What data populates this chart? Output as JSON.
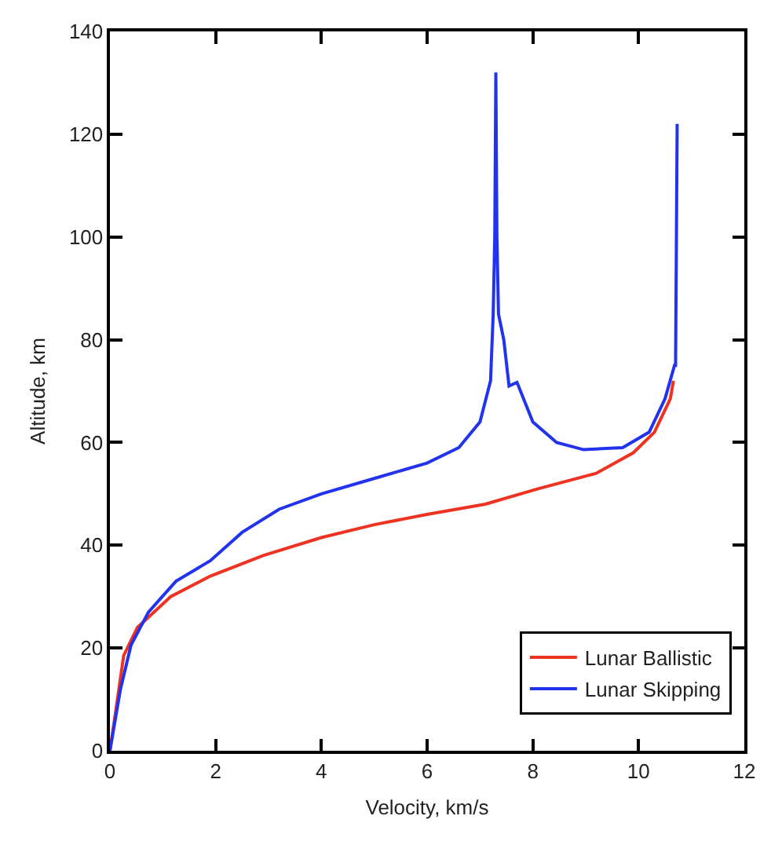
{
  "chart_data": {
    "type": "line",
    "xlabel": "Velocity, km/s",
    "ylabel": "Altitude, km",
    "xlim": [
      0,
      12
    ],
    "xticks": [
      0,
      2,
      4,
      6,
      8,
      10,
      12
    ],
    "ylim": [
      0,
      140
    ],
    "yticks": [
      0,
      20,
      40,
      60,
      80,
      100,
      120,
      140
    ],
    "grid": false,
    "legend": "bottom right",
    "marker": "none",
    "line_style": "solid",
    "series": [
      {
        "name": "Lunar Ballistic",
        "color": "#ee3322",
        "x": [
          10.66,
          10.6,
          10.3,
          9.9,
          9.2,
          8.1,
          7.1,
          6,
          5,
          4,
          2.9,
          1.9,
          1.15,
          0.52,
          0.26,
          0.1,
          0
        ],
        "values": [
          72,
          68.5,
          62,
          58,
          54,
          51,
          48,
          46,
          44,
          41.5,
          38,
          34,
          30,
          24,
          18.5,
          7,
          0
        ]
      },
      {
        "name": "Lunar Skipping",
        "color": "#2233ee",
        "x": [
          10.73,
          10.7,
          10.68,
          10.5,
          10.2,
          9.7,
          8.96,
          8.45,
          8,
          7.7,
          7.55,
          7.45,
          7.35,
          7.32,
          7.3,
          7.28,
          7.25,
          7.2,
          7,
          6.6,
          6,
          5,
          4,
          3.2,
          2.5,
          1.9,
          1.25,
          0.73,
          0.4,
          0.2,
          0
        ],
        "values": [
          122,
          75,
          75,
          68.5,
          62,
          59,
          58.6,
          60,
          64,
          71.7,
          71,
          80,
          85,
          100,
          132,
          100,
          85,
          72,
          64,
          59,
          56,
          53,
          50,
          47,
          42.5,
          37,
          33,
          27,
          20.6,
          12,
          0
        ]
      }
    ]
  }
}
